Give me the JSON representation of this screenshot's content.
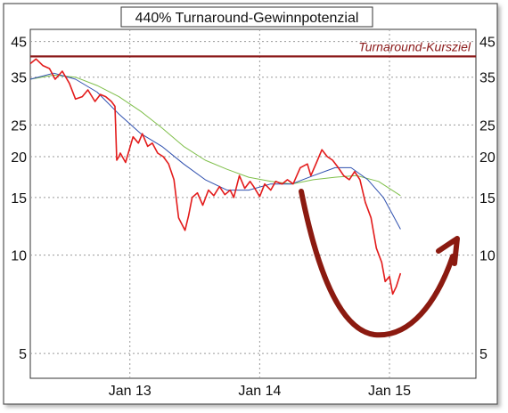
{
  "chart_data": {
    "type": "line",
    "title": "440% Turnaround-Gewinnpotenzial",
    "xlabel": "",
    "ylabel": "",
    "y_scale": "log",
    "ylim": [
      4.2,
      49
    ],
    "y_ticks": [
      5,
      10,
      15,
      20,
      25,
      35,
      45
    ],
    "x_range": [
      "2012-03-27",
      "2015-09-01"
    ],
    "x_ticks": [
      {
        "label": "Jan 13",
        "date": "2013-01-01"
      },
      {
        "label": "Jan 14",
        "date": "2014-01-01"
      },
      {
        "label": "Jan 15",
        "date": "2015-01-01"
      }
    ],
    "grid": true,
    "target_line": {
      "label": "Turnaround-Kursziel",
      "value": 40.5,
      "color": "#8b1a1a"
    },
    "series": [
      {
        "color": "#e31b1b",
        "x": [
          "2012-03-27",
          "2012-04-12",
          "2012-05-01",
          "2012-05-20",
          "2012-06-05",
          "2012-06-25",
          "2012-07-15",
          "2012-08-01",
          "2012-08-20",
          "2012-09-05",
          "2012-09-25",
          "2012-10-10",
          "2012-10-25",
          "2012-11-10",
          "2012-11-20",
          "2012-11-25",
          "2012-12-01",
          "2012-12-05",
          "2012-12-20",
          "2013-01-10",
          "2013-01-25",
          "2013-02-05",
          "2013-02-20",
          "2013-03-05",
          "2013-03-20",
          "2013-04-05",
          "2013-04-20",
          "2013-05-05",
          "2013-05-18",
          "2013-06-05",
          "2013-06-15",
          "2013-06-25",
          "2013-07-10",
          "2013-07-25",
          "2013-08-10",
          "2013-08-25",
          "2013-09-10",
          "2013-09-25",
          "2013-10-10",
          "2013-10-20",
          "2013-11-05",
          "2013-11-20",
          "2013-12-05",
          "2013-12-15",
          "2014-01-01",
          "2014-01-15",
          "2014-02-01",
          "2014-02-15",
          "2014-03-05",
          "2014-03-20",
          "2014-04-05",
          "2014-04-25",
          "2014-05-15",
          "2014-05-25",
          "2014-06-10",
          "2014-06-25",
          "2014-07-10",
          "2014-07-25",
          "2014-08-10",
          "2014-08-25",
          "2014-09-10",
          "2014-09-25",
          "2014-10-10",
          "2014-10-25",
          "2014-11-10",
          "2014-11-25",
          "2014-12-10",
          "2014-12-20",
          "2015-01-01",
          "2015-01-10",
          "2015-01-20",
          "2015-02-01"
        ],
        "values": [
          38.5,
          39.8,
          38,
          37.2,
          34.5,
          36.5,
          33.5,
          30,
          30.5,
          32,
          29.5,
          31,
          30.5,
          29.5,
          28.5,
          19.5,
          20,
          20.5,
          19.2,
          23,
          22,
          23.5,
          21.5,
          22,
          20.5,
          20,
          19,
          17,
          13,
          11.9,
          13.2,
          15,
          15.5,
          14.2,
          15.8,
          15.2,
          16.2,
          15.3,
          15.8,
          15,
          17.5,
          16,
          16.8,
          16.2,
          15.1,
          16.5,
          15.8,
          16.8,
          16.5,
          17,
          16.5,
          18.5,
          19,
          17.5,
          19.2,
          21,
          20,
          19.5,
          18.5,
          17.5,
          17,
          18,
          17,
          14.5,
          13,
          10.5,
          9.5,
          8.3,
          8.6,
          7.6,
          8,
          8.8
        ]
      },
      {
        "color": "#2e4fae",
        "x": [
          "2012-03-27",
          "2012-06-01",
          "2012-08-01",
          "2012-10-01",
          "2012-12-01",
          "2013-02-01",
          "2013-04-01",
          "2013-06-01",
          "2013-08-01",
          "2013-10-01",
          "2013-12-01",
          "2014-02-01",
          "2014-04-01",
          "2014-06-01",
          "2014-08-01",
          "2014-09-15",
          "2014-11-01",
          "2014-12-15",
          "2015-02-01"
        ],
        "values": [
          34.5,
          36,
          34.5,
          31.5,
          27,
          23.5,
          21.5,
          19,
          17,
          15.8,
          15.8,
          16.5,
          16.5,
          17.5,
          18.5,
          18.5,
          17,
          15,
          12
        ]
      },
      {
        "color": "#7fbf4a",
        "x": [
          "2012-03-27",
          "2012-06-01",
          "2012-08-01",
          "2012-10-01",
          "2012-12-01",
          "2013-02-01",
          "2013-04-01",
          "2013-06-01",
          "2013-08-01",
          "2013-10-01",
          "2013-12-01",
          "2014-02-01",
          "2014-04-01",
          "2014-06-01",
          "2014-08-01",
          "2014-10-01",
          "2014-12-01",
          "2015-02-01"
        ],
        "values": [
          34.5,
          35.5,
          35,
          33,
          30.5,
          27.5,
          24.5,
          21.5,
          19.5,
          18.3,
          17.3,
          16.8,
          16.5,
          17,
          17.3,
          17.5,
          16.8,
          15.2
        ]
      }
    ]
  }
}
